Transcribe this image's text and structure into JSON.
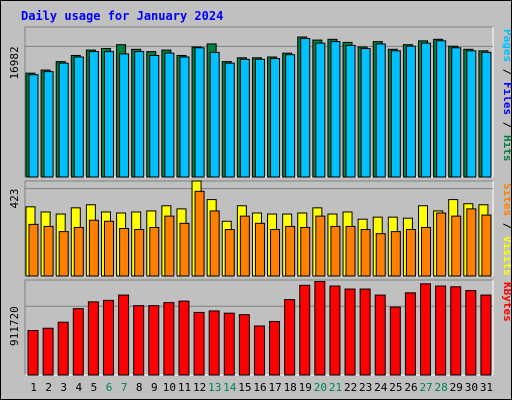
{
  "chart_data": {
    "type": "bar",
    "title": "Daily usage for January 2024",
    "categories": [
      "1",
      "2",
      "3",
      "4",
      "5",
      "6",
      "7",
      "8",
      "9",
      "10",
      "11",
      "12",
      "13",
      "14",
      "15",
      "16",
      "17",
      "18",
      "19",
      "20",
      "21",
      "22",
      "23",
      "24",
      "25",
      "26",
      "27",
      "28",
      "29",
      "30",
      "31"
    ],
    "weekend_days": [
      "6",
      "7",
      "13",
      "14",
      "20",
      "21",
      "27",
      "28"
    ],
    "colors": {
      "hits": "#008040",
      "files": "#00c0ff",
      "pages": "#00a0c0",
      "visits": "#ffff00",
      "sites": "#ff8000",
      "kbytes": "#ff0000",
      "title": "#0000ff",
      "weekday_label": "#000000",
      "weekend_label": "#00805c"
    },
    "panels": [
      {
        "id": "hits-files-pages",
        "ylabel_parts": [
          {
            "text": "Pages",
            "color": "#00c0ff"
          },
          {
            "text": " / ",
            "color": "#000000"
          },
          {
            "text": "Files",
            "color": "#0000ff"
          },
          {
            "text": " / ",
            "color": "#000000"
          },
          {
            "text": "Hits",
            "color": "#008040"
          }
        ],
        "tick_label": "16982",
        "tick_value": 16982,
        "ylim": [
          0,
          19500
        ],
        "series": [
          {
            "name": "Hits",
            "color": "#008040",
            "values": [
              13500,
              13900,
              15000,
              15800,
              16500,
              16700,
              17200,
              16600,
              16300,
              16500,
              15800,
              16900,
              17300,
              15000,
              15500,
              15500,
              15600,
              16100,
              18200,
              17800,
              17900,
              17500,
              16900,
              17600,
              16600,
              17200,
              17700,
              17900,
              17000,
              16600,
              16400
            ]
          },
          {
            "name": "Files",
            "color": "#00c0ff",
            "values": [
              13300,
              13700,
              14800,
              15600,
              16300,
              16300,
              16000,
              16300,
              15800,
              16100,
              15600,
              16800,
              16200,
              14800,
              15300,
              15300,
              15400,
              15900,
              18000,
              17400,
              17600,
              17100,
              16700,
              17300,
              16400,
              17000,
              17400,
              17700,
              16800,
              16400,
              16200
            ]
          }
        ]
      },
      {
        "id": "visits-sites",
        "ylabel_parts": [
          {
            "text": "Sites",
            "color": "#ff8000"
          },
          {
            "text": " / ",
            "color": "#000000"
          },
          {
            "text": "Visits",
            "color": "#ffff00"
          }
        ],
        "tick_label": "423",
        "tick_value": 423,
        "ylim": [
          0,
          460
        ],
        "series": [
          {
            "name": "Visits",
            "color": "#ffff00",
            "values": [
              335,
              310,
              300,
              330,
              345,
              310,
              305,
              310,
              315,
              340,
              325,
              460,
              370,
              265,
              340,
              305,
              300,
              300,
              305,
              330,
              300,
              310,
              275,
              285,
              285,
              280,
              340,
              315,
              370,
              350,
              345
            ]
          },
          {
            "name": "Sites",
            "color": "#ff8000",
            "values": [
              250,
              240,
              215,
              235,
              270,
              265,
              230,
              225,
              235,
              290,
              255,
              410,
              315,
              225,
              290,
              255,
              225,
              240,
              235,
              290,
              240,
              240,
              225,
              205,
              215,
              225,
              235,
              305,
              290,
              325,
              295
            ]
          }
        ]
      },
      {
        "id": "kbytes",
        "ylabel_parts": [
          {
            "text": "KBytes",
            "color": "#ff0000"
          }
        ],
        "tick_label": "911720",
        "tick_value": 911720,
        "ylim": [
          0,
          1260000
        ],
        "series": [
          {
            "name": "KBytes",
            "color": "#ff0000",
            "values": [
              590000,
              620000,
              700000,
              880000,
              970000,
              990000,
              1060000,
              920000,
              920000,
              960000,
              980000,
              830000,
              850000,
              820000,
              800000,
              650000,
              710000,
              1000000,
              1190000,
              1240000,
              1180000,
              1140000,
              1140000,
              1060000,
              900000,
              1090000,
              1210000,
              1180000,
              1170000,
              1120000,
              1060000
            ]
          }
        ]
      }
    ]
  }
}
